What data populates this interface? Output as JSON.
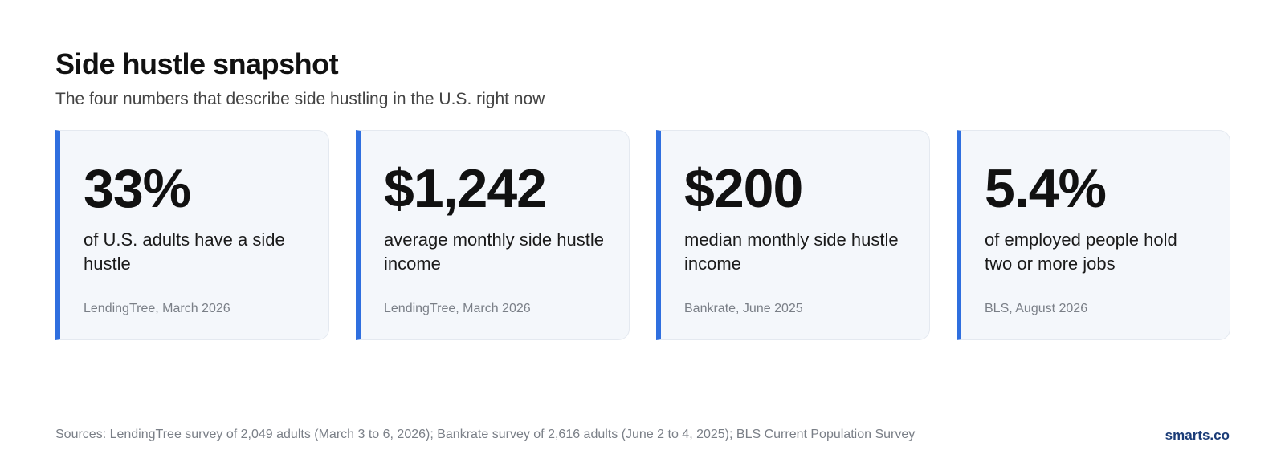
{
  "header": {
    "title": "Side hustle snapshot",
    "subtitle": "The four numbers that describe side hustling in the U.S. right now"
  },
  "cards": [
    {
      "value": "33%",
      "description": "of U.S. adults have a side hustle",
      "source": "LendingTree, March 2026"
    },
    {
      "value": "$1,242",
      "description": "average monthly side hustle income",
      "source": "LendingTree, March 2026"
    },
    {
      "value": "$200",
      "description": "median monthly side hustle income",
      "source": "Bankrate, June 2025"
    },
    {
      "value": "5.4%",
      "description": "of employed people hold two or more jobs",
      "source": "BLS, August 2026"
    }
  ],
  "footer": {
    "sources": "Sources: LendingTree survey of 2,049 adults (March 3 to 6, 2026); Bankrate survey of 2,616 adults (June 2 to 4, 2025); BLS Current Population Survey",
    "brand": "smarts.co"
  },
  "colors": {
    "accent": "#2f6fdf",
    "card_background": "#f4f7fb",
    "brand": "#1b3c77"
  }
}
